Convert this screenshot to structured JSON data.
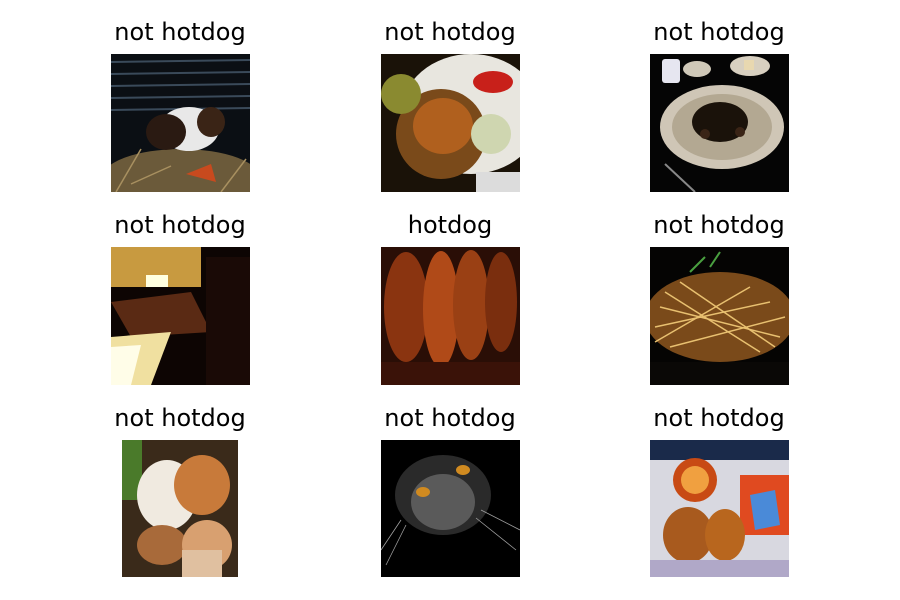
{
  "grid": {
    "items": [
      {
        "label": "not hotdog",
        "image": "guinea-pig-in-cage-photo"
      },
      {
        "label": "not hotdog",
        "image": "plated-food-with-tomato-photo"
      },
      {
        "label": "not hotdog",
        "image": "dark-dish-on-plate-photo"
      },
      {
        "label": "not hotdog",
        "image": "dark-interior-window-photo"
      },
      {
        "label": "hotdog",
        "image": "hotdog-buns-closeup-photo"
      },
      {
        "label": "not hotdog",
        "image": "noodle-dish-photo"
      },
      {
        "label": "not hotdog",
        "image": "cats-lying-photo"
      },
      {
        "label": "not hotdog",
        "image": "cat-face-dark-photo"
      },
      {
        "label": "not hotdog",
        "image": "tray-with-bread-rolls-photo"
      }
    ]
  }
}
